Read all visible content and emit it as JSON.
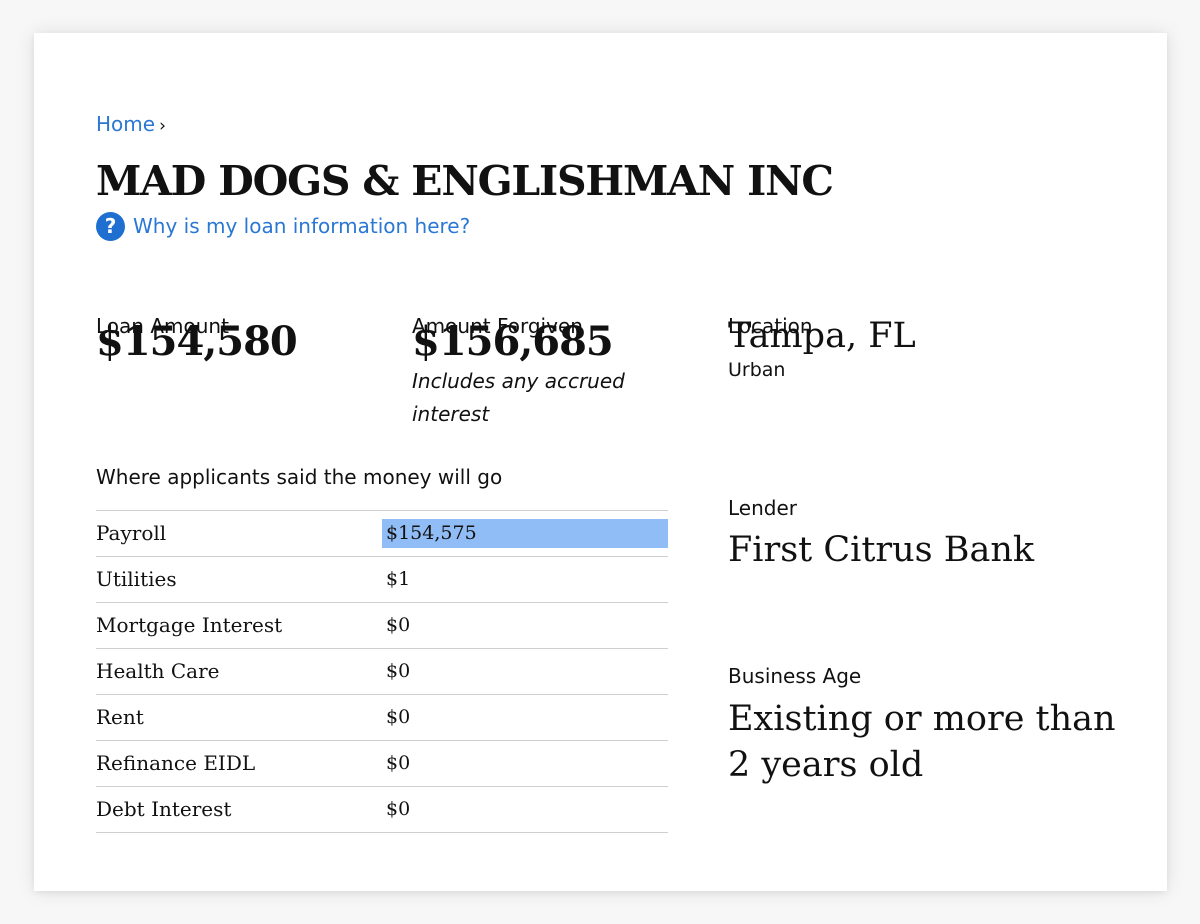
{
  "breadcrumb": {
    "home_label": "Home",
    "separator": "›"
  },
  "business": {
    "name": "MAD DOGS & ENGLISHMAN INC"
  },
  "help_link": {
    "icon": "question-circle-icon",
    "icon_glyph": "?",
    "label": "Why is my loan information here?"
  },
  "loan_amount": {
    "label": "Loan Amount",
    "value": "$154,580"
  },
  "amount_forgiven": {
    "label": "Amount Forgiven",
    "value": "$156,685",
    "note": "Includes any accrued interest"
  },
  "location": {
    "label": "Location",
    "value": "Tampa, FL",
    "type": "Urban"
  },
  "lender": {
    "label": "Lender",
    "value": "First Citrus Bank"
  },
  "business_age": {
    "label": "Business Age",
    "value": "Existing or more than 2 years old"
  },
  "allocation": {
    "caption": "Where applicants said the money will go",
    "rows": [
      {
        "name": "Payroll",
        "value": "$154,575",
        "amount": 154575
      },
      {
        "name": "Utilities",
        "value": "$1",
        "amount": 1
      },
      {
        "name": "Mortgage Interest",
        "value": "$0",
        "amount": 0
      },
      {
        "name": "Health Care",
        "value": "$0",
        "amount": 0
      },
      {
        "name": "Rent",
        "value": "$0",
        "amount": 0
      },
      {
        "name": "Refinance EIDL",
        "value": "$0",
        "amount": 0
      },
      {
        "name": "Debt Interest",
        "value": "$0",
        "amount": 0
      }
    ]
  },
  "colors": {
    "link": "#2a77d4",
    "bar": "#91bdf6",
    "icon_bg": "#1f6fd0"
  }
}
